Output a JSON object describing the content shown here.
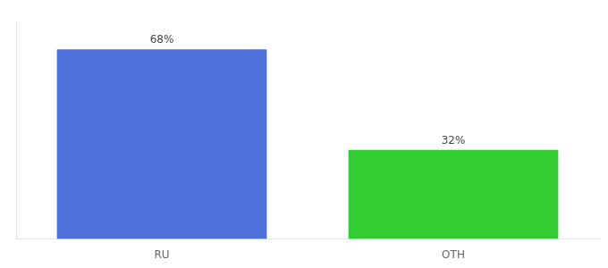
{
  "chart_data": {
    "type": "bar",
    "categories": [
      "RU",
      "OTH"
    ],
    "values": [
      68,
      32
    ],
    "value_labels": [
      "68%",
      "32%"
    ],
    "colors": [
      "#4d72d9",
      "#33cc33"
    ],
    "ylim": [
      0,
      78
    ],
    "grid": false,
    "data_labels": true,
    "tick_labels": "x"
  }
}
